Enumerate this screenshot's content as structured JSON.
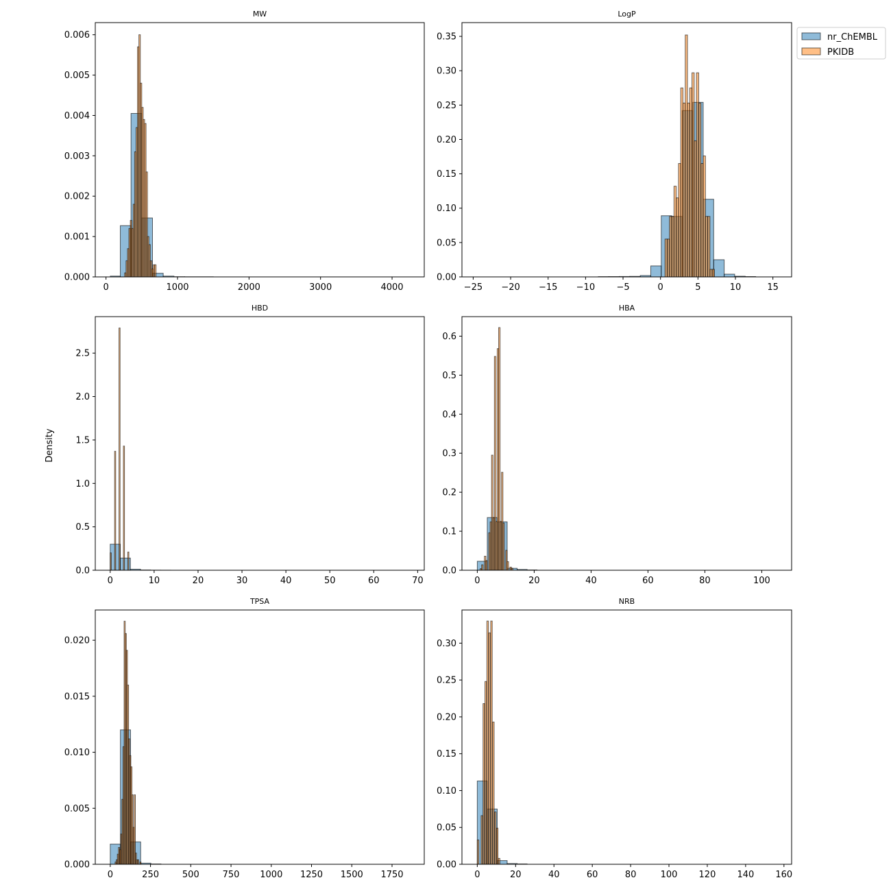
{
  "figure": {
    "ylabel": "Density",
    "legend": {
      "placement": "upper-right-outside",
      "entries": [
        {
          "label": "nr_ChEMBL",
          "color": "#1f77b4"
        },
        {
          "label": "PKIDB",
          "color": "#ff7f0e"
        }
      ]
    }
  },
  "chart_data": [
    {
      "type": "histogram",
      "title": "MW",
      "xlim": [
        -150,
        4450
      ],
      "ylim": [
        0,
        0.0063
      ],
      "xticks": [
        0,
        1000,
        2000,
        3000,
        4000
      ],
      "yticks": [
        0.0,
        0.001,
        0.002,
        0.003,
        0.004,
        0.005,
        0.006
      ],
      "ytick_decimals": 3,
      "series": [
        {
          "name": "nr_ChEMBL",
          "color": "#1f77b4",
          "bins": [
            [
              60,
              200,
              2e-05
            ],
            [
              200,
              350,
              0.00127
            ],
            [
              350,
              500,
              0.00405
            ],
            [
              500,
              650,
              0.00146
            ],
            [
              650,
              800,
              9e-05
            ],
            [
              800,
              950,
              2e-05
            ],
            [
              950,
              1100,
              5e-06
            ],
            [
              1100,
              1500,
              3e-06
            ]
          ]
        },
        {
          "name": "PKIDB",
          "color": "#ff7f0e",
          "bins": [
            [
              260,
              280,
              0.0001
            ],
            [
              280,
              300,
              0.0004
            ],
            [
              300,
              320,
              0.0007
            ],
            [
              320,
              340,
              0.0012
            ],
            [
              340,
              360,
              0.0014
            ],
            [
              360,
              380,
              0.0012
            ],
            [
              380,
              400,
              0.0018
            ],
            [
              400,
              420,
              0.0031
            ],
            [
              420,
              440,
              0.0037
            ],
            [
              440,
              460,
              0.0057
            ],
            [
              460,
              480,
              0.006
            ],
            [
              480,
              500,
              0.0048
            ],
            [
              500,
              520,
              0.0042
            ],
            [
              520,
              540,
              0.0039
            ],
            [
              540,
              560,
              0.0038
            ],
            [
              560,
              580,
              0.0026
            ],
            [
              580,
              600,
              0.001
            ],
            [
              600,
              620,
              0.0008
            ],
            [
              620,
              640,
              0.0004
            ],
            [
              640,
              660,
              0.0002
            ],
            [
              660,
              680,
              0.0003
            ],
            [
              680,
              700,
              0.0003
            ]
          ]
        }
      ]
    },
    {
      "type": "histogram",
      "title": "LogP",
      "xlim": [
        -26.5,
        17.5
      ],
      "ylim": [
        0,
        0.37
      ],
      "xticks": [
        -25,
        -20,
        -15,
        -10,
        -5,
        0,
        5,
        10,
        15
      ],
      "yticks": [
        0.0,
        0.05,
        0.1,
        0.15,
        0.2,
        0.25,
        0.3,
        0.35
      ],
      "ytick_decimals": 2,
      "series": [
        {
          "name": "nr_ChEMBL",
          "color": "#1f77b4",
          "bins": [
            [
              -8.3,
              -6.9,
              0.0004
            ],
            [
              -6.9,
              -5.5,
              0.0005
            ],
            [
              -5.5,
              -4.1,
              0.0006
            ],
            [
              -4.1,
              -2.7,
              0.0008
            ],
            [
              -2.7,
              -1.3,
              0.002
            ],
            [
              -1.3,
              0.1,
              0.016
            ],
            [
              0.1,
              1.5,
              0.089
            ],
            [
              1.5,
              2.9,
              0.088
            ],
            [
              2.9,
              4.3,
              0.242
            ],
            [
              4.3,
              5.7,
              0.254
            ],
            [
              5.7,
              7.1,
              0.113
            ],
            [
              7.1,
              8.5,
              0.025
            ],
            [
              8.5,
              9.9,
              0.004
            ],
            [
              9.9,
              11.3,
              0.001
            ],
            [
              11.3,
              12.7,
              0.0005
            ]
          ]
        },
        {
          "name": "PKIDB",
          "color": "#ff7f0e",
          "bins": [
            [
              0.6,
              0.9,
              0.055
            ],
            [
              0.9,
              1.2,
              0.055
            ],
            [
              1.2,
              1.5,
              0.088
            ],
            [
              1.5,
              1.8,
              0.088
            ],
            [
              1.8,
              2.1,
              0.132
            ],
            [
              2.1,
              2.4,
              0.115
            ],
            [
              2.4,
              2.7,
              0.165
            ],
            [
              2.7,
              3.0,
              0.275
            ],
            [
              3.0,
              3.3,
              0.253
            ],
            [
              3.3,
              3.6,
              0.352
            ],
            [
              3.6,
              3.9,
              0.253
            ],
            [
              3.9,
              4.2,
              0.275
            ],
            [
              4.2,
              4.5,
              0.297
            ],
            [
              4.5,
              4.8,
              0.198
            ],
            [
              4.8,
              5.1,
              0.297
            ],
            [
              5.1,
              5.4,
              0.253
            ],
            [
              5.4,
              5.7,
              0.165
            ],
            [
              5.7,
              6.0,
              0.176
            ],
            [
              6.0,
              6.3,
              0.088
            ],
            [
              6.3,
              6.6,
              0.088
            ],
            [
              6.6,
              6.9,
              0.011
            ],
            [
              6.9,
              7.2,
              0.011
            ]
          ]
        }
      ]
    },
    {
      "type": "histogram",
      "title": "HBD",
      "xlim": [
        -3.4,
        71.5
      ],
      "ylim": [
        0,
        2.92
      ],
      "xticks": [
        0,
        10,
        20,
        30,
        40,
        50,
        60,
        70
      ],
      "yticks": [
        0.0,
        0.5,
        1.0,
        1.5,
        2.0,
        2.5
      ],
      "ytick_decimals": 1,
      "series": [
        {
          "name": "nr_ChEMBL",
          "color": "#1f77b4",
          "bins": [
            [
              0,
              2.3,
              0.3
            ],
            [
              2.3,
              4.6,
              0.14
            ],
            [
              4.6,
              6.9,
              0.012
            ],
            [
              6.9,
              9.2,
              0.003
            ],
            [
              9.2,
              11.5,
              0.001
            ],
            [
              11.5,
              13.8,
              0.0005
            ]
          ]
        },
        {
          "name": "PKIDB",
          "color": "#ff7f0e",
          "bins": [
            [
              0,
              0.25,
              0.2
            ],
            [
              1,
              1.25,
              1.37
            ],
            [
              2,
              2.25,
              2.79
            ],
            [
              3,
              3.25,
              1.43
            ],
            [
              4,
              4.25,
              0.21
            ]
          ]
        }
      ]
    },
    {
      "type": "histogram",
      "title": "HBA",
      "xlim": [
        -5.4,
        110.5
      ],
      "ylim": [
        0,
        0.65
      ],
      "xticks": [
        0,
        20,
        40,
        60,
        80,
        100
      ],
      "yticks": [
        0.0,
        0.1,
        0.2,
        0.3,
        0.4,
        0.5,
        0.6
      ],
      "ytick_decimals": 1,
      "series": [
        {
          "name": "nr_ChEMBL",
          "color": "#1f77b4",
          "bins": [
            [
              0,
              3.5,
              0.023
            ],
            [
              3.5,
              7,
              0.135
            ],
            [
              7,
              10.5,
              0.124
            ],
            [
              10.5,
              14,
              0.005
            ],
            [
              14,
              17.5,
              0.002
            ],
            [
              17.5,
              21,
              0.0008
            ]
          ]
        },
        {
          "name": "PKIDB",
          "color": "#ff7f0e",
          "bins": [
            [
              1.0,
              1.5,
              0.004
            ],
            [
              1.5,
              2.0,
              0.014
            ],
            [
              2.5,
              3.0,
              0.036
            ],
            [
              3.0,
              3.5,
              0.025
            ],
            [
              4.0,
              4.5,
              0.096
            ],
            [
              4.5,
              5.0,
              0.124
            ],
            [
              5.0,
              5.5,
              0.295
            ],
            [
              5.5,
              6.0,
              0.135
            ],
            [
              6.0,
              6.5,
              0.548
            ],
            [
              6.5,
              7.0,
              0.125
            ],
            [
              7.0,
              7.5,
              0.568
            ],
            [
              7.5,
              8.0,
              0.622
            ],
            [
              8.0,
              8.5,
              0.125
            ],
            [
              8.5,
              9.0,
              0.251
            ],
            [
              9.0,
              9.5,
              0.121
            ],
            [
              10.0,
              10.5,
              0.051
            ],
            [
              10.5,
              11.0,
              0.022
            ],
            [
              11.5,
              12.0,
              0.008
            ],
            [
              12.0,
              12.5,
              0.005
            ]
          ]
        }
      ]
    },
    {
      "type": "histogram",
      "title": "TPSA",
      "xlim": [
        -93,
        1950
      ],
      "ylim": [
        0,
        0.0227
      ],
      "xticks": [
        0,
        250,
        500,
        750,
        1000,
        1250,
        1500,
        1750
      ],
      "yticks": [
        0.0,
        0.005,
        0.01,
        0.015,
        0.02
      ],
      "ytick_decimals": 3,
      "series": [
        {
          "name": "nr_ChEMBL",
          "color": "#1f77b4",
          "bins": [
            [
              0,
              63,
              0.0018
            ],
            [
              63,
              126,
              0.012
            ],
            [
              126,
              189,
              0.002
            ],
            [
              189,
              252,
              0.0001
            ],
            [
              252,
              315,
              3e-05
            ]
          ]
        },
        {
          "name": "PKIDB",
          "color": "#ff7f0e",
          "bins": [
            [
              30,
              37,
              0.0002
            ],
            [
              37,
              44,
              0.0004
            ],
            [
              44,
              51,
              0.0009
            ],
            [
              51,
              58,
              0.0015
            ],
            [
              58,
              65,
              0.0013
            ],
            [
              65,
              72,
              0.0027
            ],
            [
              72,
              79,
              0.0058
            ],
            [
              79,
              86,
              0.0105
            ],
            [
              86,
              93,
              0.0217
            ],
            [
              93,
              100,
              0.0206
            ],
            [
              100,
              107,
              0.0191
            ],
            [
              107,
              114,
              0.016
            ],
            [
              114,
              121,
              0.0112
            ],
            [
              121,
              128,
              0.0097
            ],
            [
              128,
              135,
              0.0087
            ],
            [
              135,
              142,
              0.0062
            ],
            [
              142,
              149,
              0.0033
            ],
            [
              149,
              156,
              0.0062
            ],
            [
              156,
              163,
              0.001
            ],
            [
              163,
              170,
              0.0004
            ],
            [
              170,
              177,
              0.0004
            ],
            [
              184,
              191,
              0.0002
            ]
          ]
        }
      ]
    },
    {
      "type": "histogram",
      "title": "NRB",
      "xlim": [
        -8,
        164
      ],
      "ylim": [
        0,
        0.345
      ],
      "xticks": [
        0,
        20,
        40,
        60,
        80,
        100,
        120,
        140,
        160
      ],
      "yticks": [
        0.0,
        0.05,
        0.1,
        0.15,
        0.2,
        0.25,
        0.3
      ],
      "ytick_decimals": 2,
      "series": [
        {
          "name": "nr_ChEMBL",
          "color": "#1f77b4",
          "bins": [
            [
              0,
              5.2,
              0.113
            ],
            [
              5.2,
              10.4,
              0.075
            ],
            [
              10.4,
              15.6,
              0.005
            ],
            [
              15.6,
              20.8,
              0.001
            ],
            [
              20.8,
              26,
              0.0005
            ]
          ]
        },
        {
          "name": "PKIDB",
          "color": "#ff7f0e",
          "bins": [
            [
              0,
              0.8,
              0.033
            ],
            [
              2.0,
              2.8,
              0.066
            ],
            [
              3.0,
              3.8,
              0.218
            ],
            [
              4.0,
              4.8,
              0.248
            ],
            [
              5.0,
              5.8,
              0.33
            ],
            [
              6.0,
              6.8,
              0.314
            ],
            [
              7.0,
              7.8,
              0.33
            ],
            [
              8.0,
              8.8,
              0.193
            ],
            [
              9.0,
              9.8,
              0.071
            ],
            [
              10.0,
              10.8,
              0.049
            ],
            [
              11.0,
              11.8,
              0.008
            ]
          ]
        }
      ]
    }
  ]
}
